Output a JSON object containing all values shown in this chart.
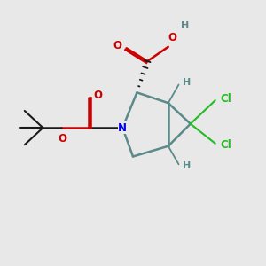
{
  "background_color": "#e8e8e8",
  "bond_color": "#5a8a8a",
  "bond_color_dark": "#1a1a1a",
  "N_color": "#0000ee",
  "O_color": "#cc0000",
  "Cl_color": "#22bb22",
  "H_color": "#5a8a8a",
  "figsize": [
    3.0,
    3.0
  ],
  "dpi": 100,
  "xlim": [
    0,
    10
  ],
  "ylim": [
    0,
    10
  ]
}
